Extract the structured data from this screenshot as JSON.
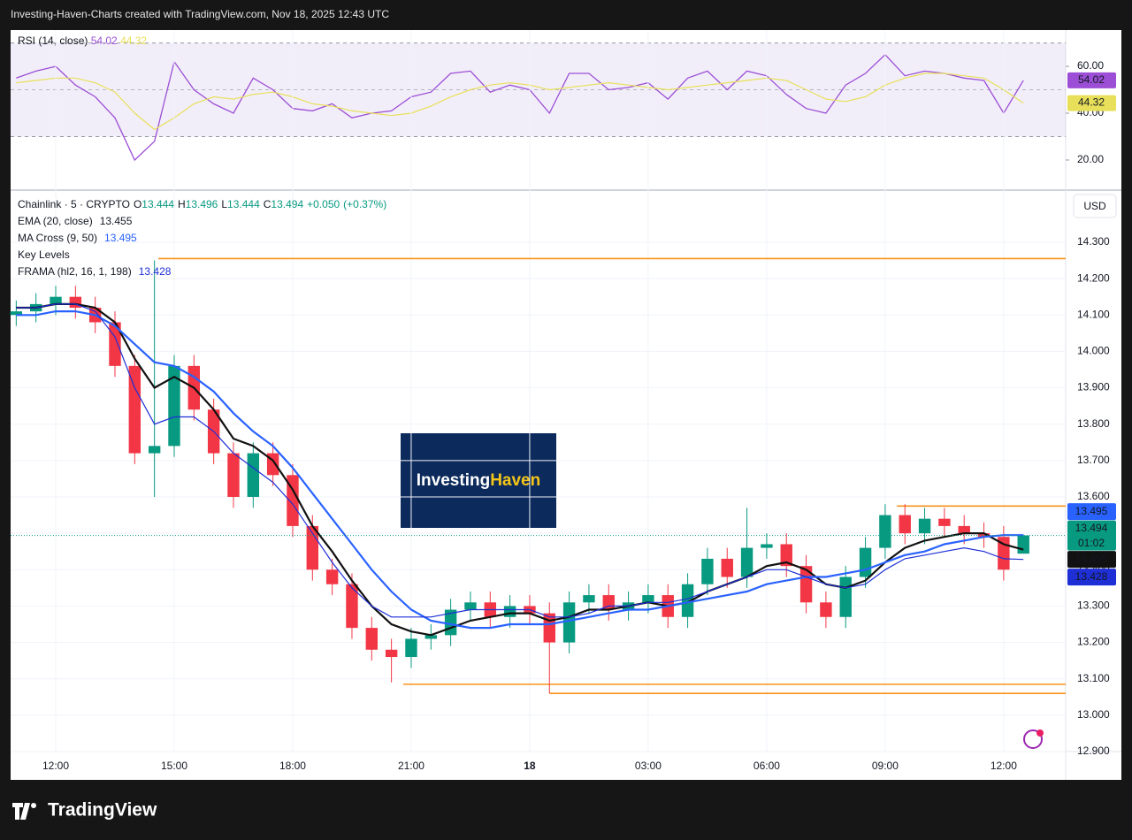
{
  "header": {
    "title": "Investing-Haven-Charts created with TradingView.com, Nov 18, 2025 12:43 UTC"
  },
  "footer": {
    "brand": "TradingView"
  },
  "watermark": {
    "part1": "Investing",
    "part2": "Haven"
  },
  "chart_data": [
    {
      "type": "line",
      "title": "RSI (14, close)",
      "x": [
        11,
        11.5,
        12,
        12.5,
        13,
        13.5,
        14,
        14.5,
        15,
        15.5,
        16,
        16.5,
        17,
        17.5,
        18,
        18.5,
        19,
        19.5,
        20,
        20.5,
        21,
        21.5,
        22,
        22.5,
        23,
        23.5,
        24,
        24.5,
        25,
        25.5,
        26,
        26.5,
        27,
        27.5,
        28,
        28.5,
        29,
        29.5,
        30,
        30.5,
        31,
        31.5,
        32,
        32.5,
        33,
        33.5,
        34,
        34.5,
        35,
        35.5,
        36,
        36.5
      ],
      "series": [
        {
          "color": "#9c4fd6",
          "values": [
            55,
            58,
            60,
            52,
            47,
            38,
            20,
            28,
            62,
            50,
            44,
            40,
            55,
            50,
            42,
            41,
            44,
            38,
            40,
            41,
            47,
            49,
            57,
            58,
            49,
            52,
            50,
            40,
            57,
            57,
            50,
            51,
            53,
            46,
            55,
            58,
            50,
            58,
            56,
            48,
            42,
            40,
            52,
            57,
            65,
            56,
            58,
            57,
            55,
            54,
            40,
            54.02
          ]
        },
        {
          "color": "#e8e05a",
          "values": [
            53,
            54,
            55,
            55,
            53,
            49,
            40,
            33,
            38,
            44,
            47,
            46,
            48,
            49,
            47,
            44,
            43,
            41,
            40,
            39,
            40,
            43,
            47,
            50,
            52,
            53,
            52,
            50,
            51,
            52,
            53,
            52,
            51,
            50,
            51,
            52,
            53,
            54,
            55,
            54,
            50,
            46,
            45,
            47,
            52,
            55,
            57,
            57,
            56,
            55,
            50,
            44.32
          ]
        }
      ],
      "xlim": [
        10.858,
        37.57
      ],
      "ylim": [
        7.9,
        74
      ],
      "yticks": [
        {
          "value": 20,
          "label": "20.00"
        },
        {
          "value": 40,
          "label": "40.00"
        },
        {
          "value": 60,
          "label": "60.00"
        }
      ],
      "bands": [
        30,
        70
      ],
      "midline": 50
    },
    {
      "type": "candlestick",
      "legend": {
        "symbol": "Chainlink · 5 · CRYPTO",
        "ohlc_keys": [
          "O",
          "H",
          "L",
          "C"
        ],
        "change": {
          "value": 0.05,
          "label": "+0.050"
        },
        "change_pct": {
          "value": 0.37,
          "label": "(+0.37%)"
        },
        "key_levels_name": "Key Levels"
      },
      "currency": "USD",
      "countdown": "01:02",
      "x": [
        11,
        11.5,
        12,
        12.5,
        13,
        13.5,
        14,
        14.5,
        15,
        15.5,
        16,
        16.5,
        17,
        17.5,
        18,
        18.5,
        19,
        19.5,
        20,
        20.5,
        21,
        21.5,
        22,
        22.5,
        23,
        23.5,
        24,
        24.5,
        25,
        25.5,
        26,
        26.5,
        27,
        27.5,
        28,
        28.5,
        29,
        29.5,
        30,
        30.5,
        31,
        31.5,
        32,
        32.5,
        33,
        33.5,
        34,
        34.5,
        35,
        35.5,
        36,
        36.5
      ],
      "open": [
        14.1,
        14.11,
        14.13,
        14.15,
        14.12,
        14.08,
        13.96,
        13.72,
        13.74,
        13.96,
        13.84,
        13.72,
        13.6,
        13.72,
        13.66,
        13.52,
        13.4,
        13.36,
        13.24,
        13.18,
        13.16,
        13.21,
        13.22,
        13.29,
        13.31,
        13.27,
        13.3,
        13.28,
        13.2,
        13.31,
        13.33,
        13.29,
        13.31,
        13.33,
        13.27,
        13.36,
        13.43,
        13.38,
        13.46,
        13.47,
        13.41,
        13.31,
        13.27,
        13.38,
        13.46,
        13.55,
        13.5,
        13.54,
        13.52,
        13.5,
        13.49,
        13.444
      ],
      "high": [
        14.14,
        14.16,
        14.18,
        14.18,
        14.15,
        14.11,
        13.99,
        14.25,
        13.99,
        13.99,
        13.87,
        13.75,
        13.75,
        13.75,
        13.69,
        13.55,
        13.43,
        13.39,
        13.27,
        13.21,
        13.24,
        13.25,
        13.32,
        13.34,
        13.34,
        13.33,
        13.33,
        13.31,
        13.34,
        13.36,
        13.36,
        13.34,
        13.36,
        13.36,
        13.39,
        13.46,
        13.46,
        13.57,
        13.5,
        13.5,
        13.44,
        13.34,
        13.41,
        13.49,
        13.58,
        13.58,
        13.57,
        13.57,
        13.55,
        13.53,
        13.52,
        13.496
      ],
      "low": [
        14.07,
        14.08,
        14.1,
        14.09,
        14.05,
        13.93,
        13.69,
        13.6,
        13.71,
        13.81,
        13.69,
        13.57,
        13.57,
        13.63,
        13.49,
        13.37,
        13.33,
        13.21,
        13.15,
        13.09,
        13.13,
        13.18,
        13.19,
        13.26,
        13.24,
        13.24,
        13.25,
        13.06,
        13.17,
        13.28,
        13.26,
        13.26,
        13.28,
        13.24,
        13.24,
        13.33,
        13.35,
        13.35,
        13.43,
        13.38,
        13.28,
        13.24,
        13.24,
        13.35,
        13.43,
        13.47,
        13.47,
        13.49,
        13.47,
        13.46,
        13.37,
        13.444
      ],
      "close": [
        14.11,
        14.13,
        14.15,
        14.12,
        14.08,
        13.96,
        13.72,
        13.74,
        13.96,
        13.84,
        13.72,
        13.6,
        13.72,
        13.66,
        13.52,
        13.4,
        13.36,
        13.24,
        13.18,
        13.16,
        13.21,
        13.22,
        13.29,
        13.31,
        13.27,
        13.3,
        13.28,
        13.2,
        13.31,
        13.33,
        13.29,
        13.31,
        13.33,
        13.27,
        13.36,
        13.43,
        13.38,
        13.46,
        13.47,
        13.41,
        13.31,
        13.27,
        13.38,
        13.46,
        13.55,
        13.5,
        13.54,
        13.52,
        13.5,
        13.49,
        13.4,
        13.494
      ],
      "up_color": "#089981",
      "down_color": "#f23645",
      "overlays": [
        {
          "name": "EMA (20, close)",
          "color": "#111111",
          "width": 2.2,
          "values": [
            14.12,
            14.12,
            14.13,
            14.13,
            14.12,
            14.08,
            13.98,
            13.9,
            13.93,
            13.9,
            13.84,
            13.76,
            13.74,
            13.7,
            13.62,
            13.52,
            13.45,
            13.37,
            13.3,
            13.25,
            13.23,
            13.22,
            13.24,
            13.26,
            13.27,
            13.28,
            13.28,
            13.26,
            13.27,
            13.29,
            13.29,
            13.3,
            13.31,
            13.3,
            13.31,
            13.34,
            13.36,
            13.38,
            13.41,
            13.42,
            13.4,
            13.36,
            13.35,
            13.37,
            13.42,
            13.46,
            13.48,
            13.49,
            13.5,
            13.5,
            13.47,
            13.455
          ]
        },
        {
          "name": "MA Cross (9, 50)",
          "color": "#2962ff",
          "width": 2.2,
          "values": [
            14.1,
            14.1,
            14.11,
            14.11,
            14.1,
            14.07,
            14.02,
            13.97,
            13.96,
            13.93,
            13.89,
            13.83,
            13.78,
            13.74,
            13.68,
            13.61,
            13.54,
            13.47,
            13.4,
            13.34,
            13.29,
            13.26,
            13.25,
            13.24,
            13.24,
            13.25,
            13.25,
            13.25,
            13.26,
            13.27,
            13.28,
            13.29,
            13.29,
            13.3,
            13.31,
            13.32,
            13.33,
            13.34,
            13.36,
            13.37,
            13.38,
            13.38,
            13.39,
            13.4,
            13.42,
            13.44,
            13.45,
            13.47,
            13.48,
            13.49,
            13.495,
            13.495
          ]
        },
        {
          "name": "FRAMA (hl2, 16, 1, 198)",
          "color": "#1e2fd6",
          "width": 1.2,
          "values": [
            14.12,
            14.12,
            14.13,
            14.13,
            14.11,
            14.04,
            13.9,
            13.8,
            13.82,
            13.82,
            13.78,
            13.72,
            13.68,
            13.64,
            13.58,
            13.5,
            13.42,
            13.35,
            13.3,
            13.27,
            13.27,
            13.27,
            13.28,
            13.29,
            13.29,
            13.29,
            13.29,
            13.27,
            13.27,
            13.28,
            13.3,
            13.3,
            13.31,
            13.31,
            13.32,
            13.34,
            13.36,
            13.38,
            13.4,
            13.4,
            13.38,
            13.36,
            13.35,
            13.36,
            13.4,
            13.43,
            13.44,
            13.45,
            13.46,
            13.45,
            13.43,
            13.428
          ]
        }
      ],
      "key_levels": [
        {
          "value": 14.255,
          "start": 14.6
        },
        {
          "value": 13.575,
          "start": 33.3
        },
        {
          "value": 13.085,
          "start": 20.8
        },
        {
          "value": 13.06,
          "start": 24.5
        }
      ],
      "key_level_color": "#f7931a",
      "xlim": [
        10.858,
        37.57
      ],
      "ylim": [
        12.9,
        14.436
      ],
      "yticks": [
        {
          "value": 12.9,
          "label": "12.900"
        },
        {
          "value": 13,
          "label": "13.000"
        },
        {
          "value": 13.1,
          "label": "13.100"
        },
        {
          "value": 13.2,
          "label": "13.200"
        },
        {
          "value": 13.3,
          "label": "13.300"
        },
        {
          "value": 13.4,
          "label": "13.400"
        },
        {
          "value": 13.5,
          "label": "13.500"
        },
        {
          "value": 13.6,
          "label": "13.600"
        },
        {
          "value": 13.7,
          "label": "13.700"
        },
        {
          "value": 13.8,
          "label": "13.800"
        },
        {
          "value": 13.9,
          "label": "13.900"
        },
        {
          "value": 14,
          "label": "14.000"
        },
        {
          "value": 14.1,
          "label": "14.100"
        },
        {
          "value": 14.2,
          "label": "14.200"
        },
        {
          "value": 14.3,
          "label": "14.300"
        }
      ],
      "xticks": [
        {
          "value": 12,
          "label": "12:00"
        },
        {
          "value": 15,
          "label": "15:00"
        },
        {
          "value": 18,
          "label": "18:00"
        },
        {
          "value": 21,
          "label": "21:00"
        },
        {
          "value": 24,
          "label": "18"
        },
        {
          "value": 27,
          "label": "03:00"
        },
        {
          "value": 30,
          "label": "06:00"
        },
        {
          "value": 33,
          "label": "09:00"
        },
        {
          "value": 36,
          "label": "12:00"
        }
      ],
      "grid": true
    }
  ]
}
